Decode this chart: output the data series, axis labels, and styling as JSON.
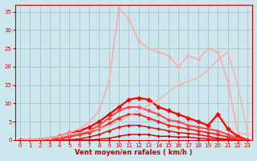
{
  "background_color": "#cce8ee",
  "grid_color": "#aabbbb",
  "xlabel": "Vent moyen/en rafales ( km/h )",
  "xlim": [
    -0.5,
    23.5
  ],
  "ylim": [
    0,
    37
  ],
  "yticks": [
    0,
    5,
    10,
    15,
    20,
    25,
    30,
    35
  ],
  "xticks": [
    0,
    1,
    2,
    3,
    4,
    5,
    6,
    7,
    8,
    9,
    10,
    11,
    12,
    13,
    14,
    15,
    16,
    17,
    18,
    19,
    20,
    21,
    22,
    23
  ],
  "axis_color": "#cc0000",
  "lines": [
    {
      "x": [
        0,
        1,
        2,
        3,
        4,
        5,
        6,
        7,
        8,
        9,
        10,
        11,
        12,
        13,
        14,
        15,
        16,
        17,
        18,
        19,
        20,
        21,
        22,
        23
      ],
      "y": [
        0,
        0,
        0,
        0,
        0,
        0,
        0,
        0,
        0.2,
        0.5,
        1,
        1.5,
        1.5,
        1.5,
        1,
        1,
        0.8,
        0.8,
        0.5,
        0.3,
        0.2,
        0.1,
        0,
        0
      ],
      "color": "#cc0000",
      "lw": 1.0,
      "marker": "D",
      "ms": 1.8
    },
    {
      "x": [
        0,
        1,
        2,
        3,
        4,
        5,
        6,
        7,
        8,
        9,
        10,
        11,
        12,
        13,
        14,
        15,
        16,
        17,
        18,
        19,
        20,
        21,
        22,
        23
      ],
      "y": [
        0,
        0,
        0,
        0,
        0,
        0,
        0.3,
        0.8,
        1.5,
        2.5,
        3.5,
        4,
        4,
        3.5,
        3,
        2.5,
        2,
        1.8,
        1.5,
        1,
        0.5,
        0.2,
        0,
        0
      ],
      "color": "#dd1111",
      "lw": 1.1,
      "marker": "D",
      "ms": 2
    },
    {
      "x": [
        0,
        1,
        2,
        3,
        4,
        5,
        6,
        7,
        8,
        9,
        10,
        11,
        12,
        13,
        14,
        15,
        16,
        17,
        18,
        19,
        20,
        21,
        22,
        23
      ],
      "y": [
        0,
        0,
        0,
        0,
        0.3,
        0.8,
        1.5,
        2,
        3,
        4.5,
        6,
        7,
        7,
        6,
        5,
        4,
        3.5,
        3,
        2.5,
        2,
        1.5,
        0.8,
        0.2,
        0
      ],
      "color": "#ee2222",
      "lw": 1.3,
      "marker": "D",
      "ms": 2.5
    },
    {
      "x": [
        0,
        1,
        2,
        3,
        4,
        5,
        6,
        7,
        8,
        9,
        10,
        11,
        12,
        13,
        14,
        15,
        16,
        17,
        18,
        19,
        20,
        21,
        22,
        23
      ],
      "y": [
        0,
        0,
        0,
        0.5,
        1,
        2,
        2.5,
        3.5,
        5,
        7,
        9,
        11,
        11.5,
        11,
        9,
        8,
        7,
        6,
        5,
        4,
        7,
        3,
        1,
        0
      ],
      "color": "#ff0000",
      "lw": 1.6,
      "marker": "D",
      "ms": 3
    },
    {
      "x": [
        0,
        1,
        2,
        3,
        4,
        5,
        6,
        7,
        8,
        9,
        10,
        11,
        12,
        13,
        14,
        15,
        16,
        17,
        18,
        19,
        20,
        21,
        22,
        23
      ],
      "y": [
        0,
        0,
        0,
        0,
        0.5,
        1,
        1.5,
        2.5,
        4,
        6,
        8,
        9,
        9,
        8,
        7,
        5.5,
        5,
        4,
        3.5,
        3,
        2.5,
        1.5,
        0.5,
        0
      ],
      "color": "#ff4444",
      "lw": 1.4,
      "marker": "D",
      "ms": 2.5
    },
    {
      "x": [
        0,
        2,
        4,
        6,
        8,
        10,
        12,
        14,
        15,
        16,
        18,
        19,
        20,
        21,
        22,
        23
      ],
      "y": [
        0,
        0.5,
        1,
        2,
        3,
        5,
        8,
        11,
        13,
        15,
        17,
        19,
        22,
        24,
        15,
        2
      ],
      "color": "#ffaaaa",
      "lw": 1.0,
      "marker": null,
      "ms": 0
    },
    {
      "x": [
        0,
        1,
        2,
        3,
        4,
        5,
        6,
        7,
        8,
        9,
        10,
        11,
        12,
        13,
        14,
        15,
        16,
        17,
        18,
        19,
        20,
        21,
        22,
        23
      ],
      "y": [
        0,
        0,
        0,
        0.5,
        1,
        2,
        3,
        5,
        8,
        16,
        36,
        33,
        27,
        25,
        24,
        23,
        20,
        23,
        22,
        25,
        24,
        16,
        2,
        1.5
      ],
      "color": "#ffaaaa",
      "lw": 1.2,
      "marker": "D",
      "ms": 2
    }
  ]
}
